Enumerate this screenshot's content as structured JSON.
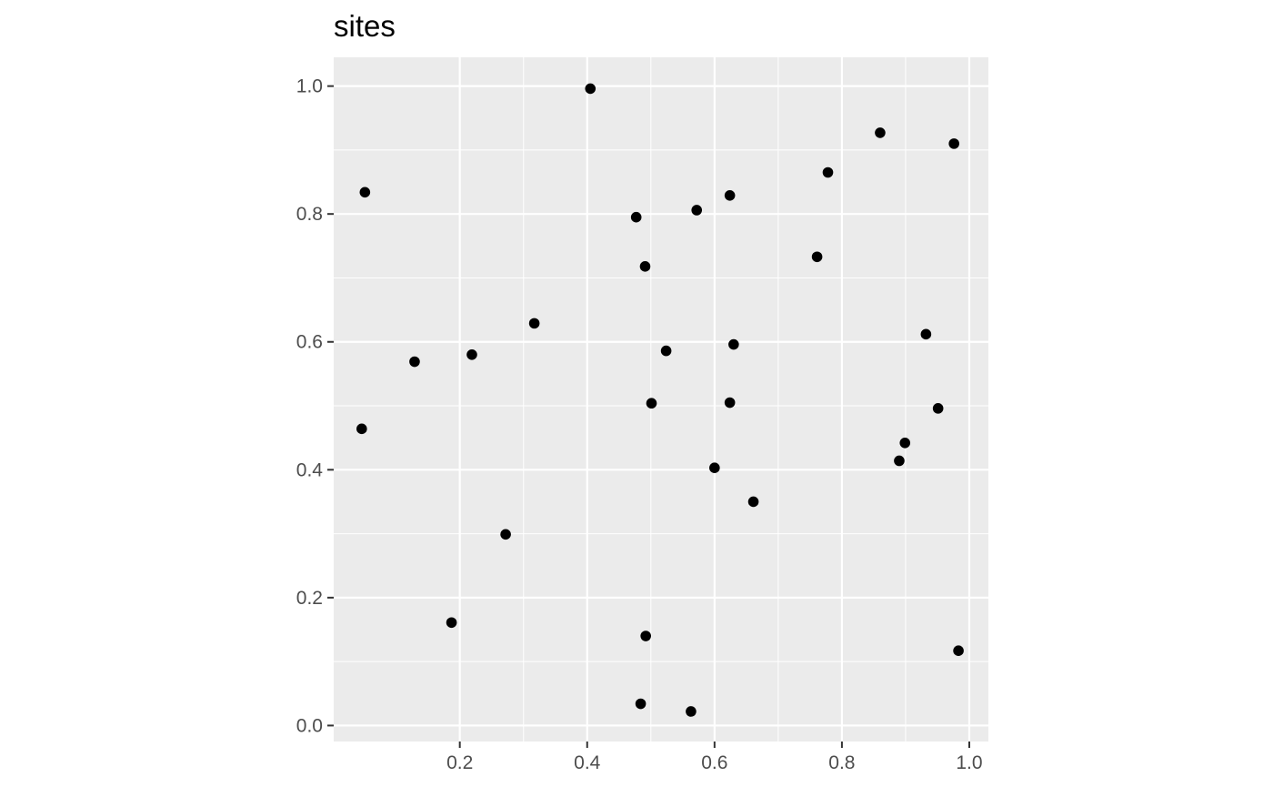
{
  "chart_data": {
    "type": "scatter",
    "title": "sites",
    "xlabel": "",
    "ylabel": "",
    "xlim": [
      0.002,
      1.03
    ],
    "ylim": [
      -0.025,
      1.045
    ],
    "x_ticks": [
      0.2,
      0.4,
      0.6,
      0.8,
      1.0
    ],
    "x_tick_labels": [
      "0.2",
      "0.4",
      "0.6",
      "0.8",
      "1.0"
    ],
    "y_ticks": [
      0.0,
      0.2,
      0.4,
      0.6,
      0.8,
      1.0
    ],
    "y_tick_labels": [
      "0.0",
      "0.2",
      "0.4",
      "0.6",
      "0.8",
      "1.0"
    ],
    "grid": true,
    "legend": "none",
    "panel_color": "#ebebeb",
    "grid_color": "#ffffff",
    "point_color": "#000000",
    "points": [
      {
        "x": 0.405,
        "y": 0.996
      },
      {
        "x": 0.051,
        "y": 0.834
      },
      {
        "x": 0.046,
        "y": 0.464
      },
      {
        "x": 0.129,
        "y": 0.569
      },
      {
        "x": 0.219,
        "y": 0.58
      },
      {
        "x": 0.317,
        "y": 0.629
      },
      {
        "x": 0.272,
        "y": 0.299
      },
      {
        "x": 0.187,
        "y": 0.161
      },
      {
        "x": 0.477,
        "y": 0.795
      },
      {
        "x": 0.491,
        "y": 0.718
      },
      {
        "x": 0.572,
        "y": 0.806
      },
      {
        "x": 0.624,
        "y": 0.829
      },
      {
        "x": 0.524,
        "y": 0.586
      },
      {
        "x": 0.63,
        "y": 0.596
      },
      {
        "x": 0.501,
        "y": 0.504
      },
      {
        "x": 0.624,
        "y": 0.505
      },
      {
        "x": 0.6,
        "y": 0.403
      },
      {
        "x": 0.661,
        "y": 0.35
      },
      {
        "x": 0.492,
        "y": 0.14
      },
      {
        "x": 0.484,
        "y": 0.034
      },
      {
        "x": 0.563,
        "y": 0.022
      },
      {
        "x": 0.761,
        "y": 0.733
      },
      {
        "x": 0.778,
        "y": 0.865
      },
      {
        "x": 0.86,
        "y": 0.927
      },
      {
        "x": 0.976,
        "y": 0.91
      },
      {
        "x": 0.932,
        "y": 0.612
      },
      {
        "x": 0.951,
        "y": 0.496
      },
      {
        "x": 0.899,
        "y": 0.442
      },
      {
        "x": 0.89,
        "y": 0.414
      },
      {
        "x": 0.983,
        "y": 0.117
      }
    ]
  }
}
